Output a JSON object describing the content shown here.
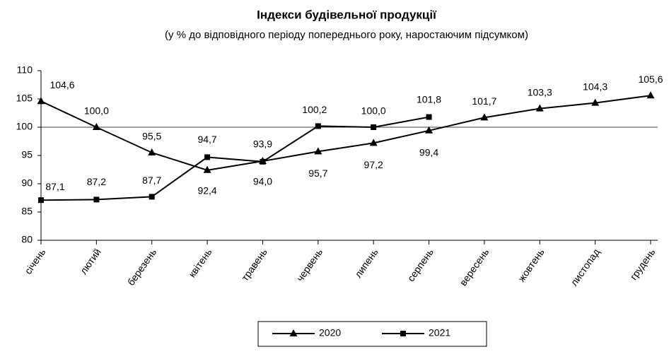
{
  "chart_data": {
    "type": "line",
    "title": "Індекси будівельної продукції",
    "subtitle": "(у % до відповідного періоду попереднього року, наростаючим підсумком)",
    "categories": [
      "січень",
      "лютий",
      "березень",
      "квітень",
      "травень",
      "червень",
      "липень",
      "серпень",
      "вересень",
      "жовтень",
      "листопад",
      "грудень"
    ],
    "series": [
      {
        "name": "2020",
        "color": "#000000",
        "marker": "triangle",
        "values": [
          104.6,
          100.0,
          95.5,
          92.4,
          94.0,
          95.7,
          97.2,
          99.4,
          101.7,
          103.3,
          104.3,
          105.6
        ],
        "value_labels": [
          "104,6",
          "100,0",
          "95,5",
          "92,4",
          "94,0",
          "95,7",
          "97,2",
          "99,4",
          "101,7",
          "103,3",
          "104,3",
          "105,6"
        ]
      },
      {
        "name": "2021",
        "color": "#000000",
        "marker": "square",
        "values": [
          87.1,
          87.2,
          87.7,
          94.7,
          93.9,
          100.2,
          100.0,
          101.8,
          null,
          null,
          null,
          null
        ],
        "value_labels": [
          "87,1",
          "87,2",
          "87,7",
          "94,7",
          "93,9",
          "100,2",
          "100,0",
          "101,8",
          null,
          null,
          null,
          null
        ]
      }
    ],
    "ylim": [
      80,
      110
    ],
    "yticks": [
      80,
      85,
      90,
      95,
      100,
      105,
      110
    ],
    "reference_line": 100,
    "grid": false,
    "legend": "bottom"
  }
}
